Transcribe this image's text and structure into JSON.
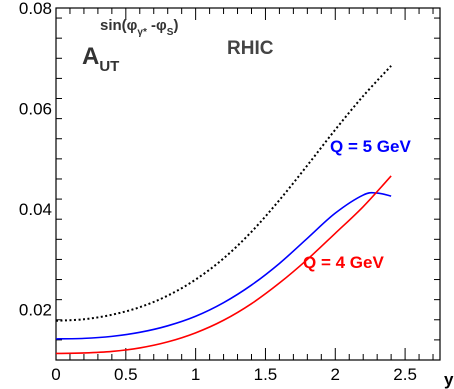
{
  "chart_data": {
    "type": "line",
    "xlabel": "y",
    "ylabel": "",
    "xlim": [
      0,
      2.75
    ],
    "ylim": [
      0.01,
      0.08
    ],
    "x_ticks": [
      "0",
      "0.5",
      "1",
      "1.5",
      "2",
      "2.5"
    ],
    "y_ticks": [
      "0.02",
      "0.04",
      "0.06",
      "0.08"
    ],
    "grid": false,
    "annotations": {
      "observable_main": "A",
      "observable_sub": "UT",
      "observable_sup": "sin(φ",
      "observable_sup_sub1": "γ*",
      "observable_sup_mid": " -φ",
      "observable_sup_sub2": "S",
      "observable_sup_end": ")",
      "experiment": "RHIC",
      "label_blue": "Q = 5 GeV",
      "label_red": "Q = 4 GeV"
    },
    "series": [
      {
        "label_key": "black-dotted",
        "color": "#000000",
        "style": "dotted",
        "x": [
          0,
          0.2,
          0.4,
          0.6,
          0.8,
          1.0,
          1.2,
          1.4,
          1.6,
          1.8,
          2.0,
          2.2,
          2.4
        ],
        "y": [
          0.0178,
          0.0181,
          0.019,
          0.0205,
          0.0228,
          0.026,
          0.0302,
          0.0355,
          0.0418,
          0.0487,
          0.0558,
          0.0625,
          0.0685
        ]
      },
      {
        "label_key": "blue",
        "color": "#0000ff",
        "style": "solid",
        "x": [
          0,
          0.2,
          0.4,
          0.6,
          0.8,
          1.0,
          1.2,
          1.4,
          1.6,
          1.8,
          2.0,
          2.2,
          2.3,
          2.4
        ],
        "y": [
          0.0142,
          0.0143,
          0.0147,
          0.0155,
          0.0168,
          0.0187,
          0.0214,
          0.0249,
          0.0292,
          0.0342,
          0.0392,
          0.0428,
          0.0432,
          0.0426
        ]
      },
      {
        "label_key": "red",
        "color": "#ff0000",
        "style": "solid",
        "x": [
          0,
          0.2,
          0.4,
          0.6,
          0.8,
          1.0,
          1.2,
          1.4,
          1.6,
          1.8,
          2.0,
          2.2,
          2.4
        ],
        "y": [
          0.0113,
          0.0114,
          0.0117,
          0.0124,
          0.0136,
          0.0154,
          0.0179,
          0.0212,
          0.0253,
          0.03,
          0.0352,
          0.0405,
          0.0466
        ]
      }
    ]
  }
}
